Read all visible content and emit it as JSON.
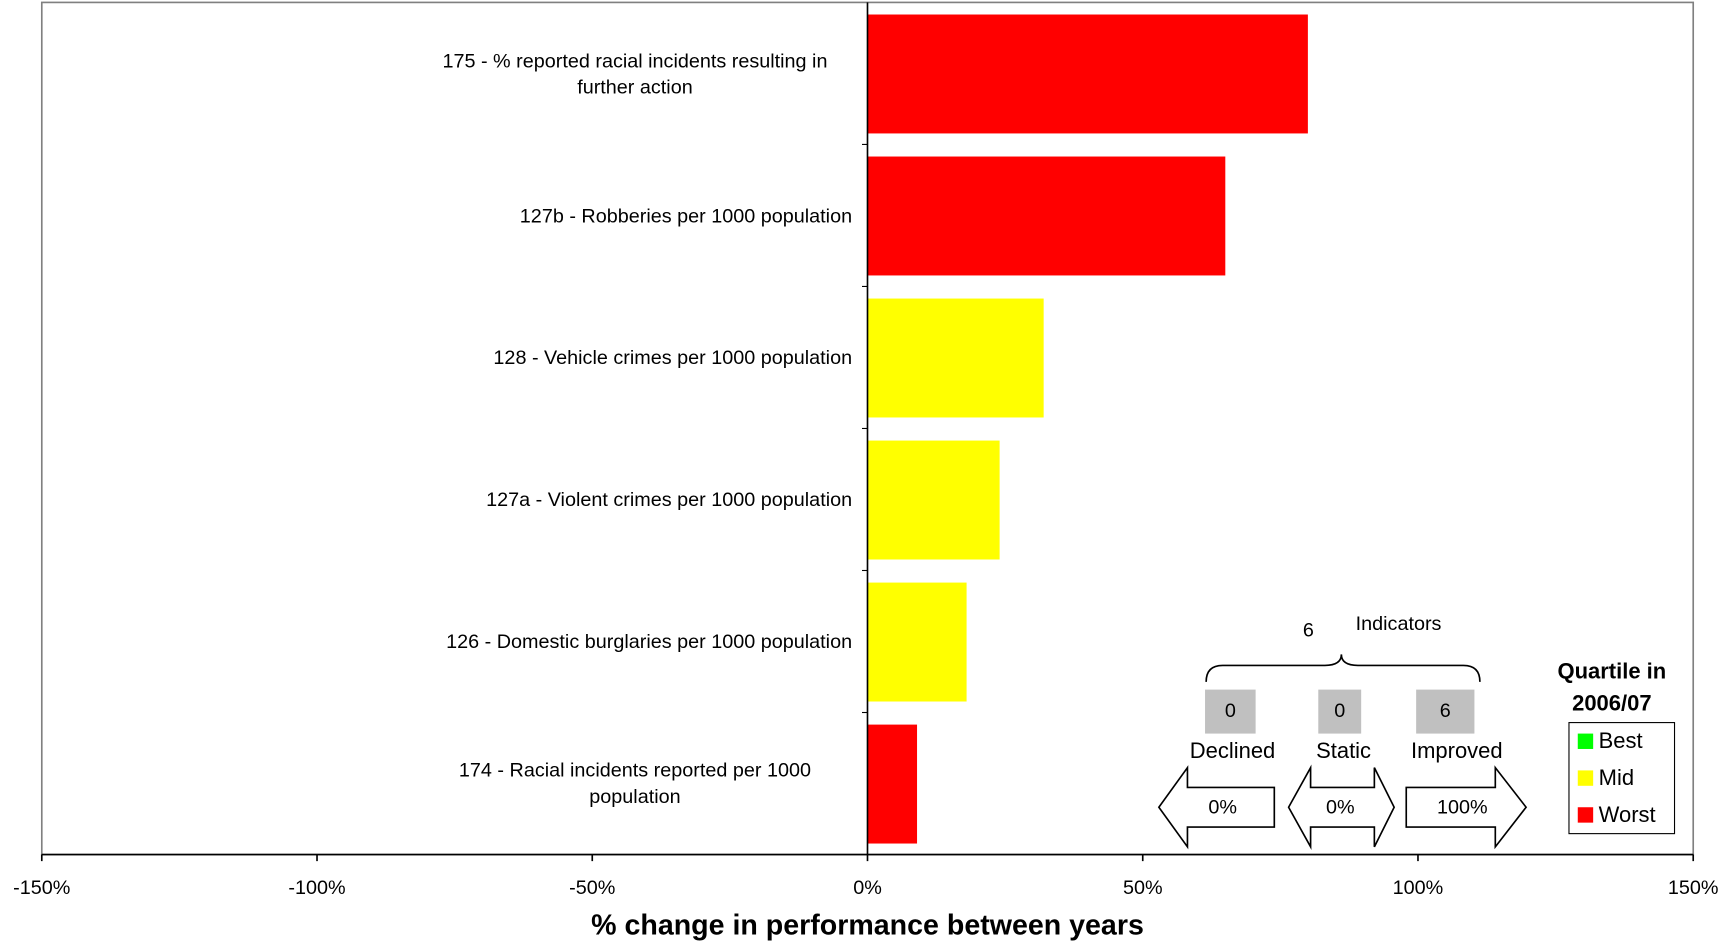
{
  "chart_data": {
    "type": "barh",
    "categories": [
      "175 - % reported racial incidents resulting in further action",
      "127b - Robberies per 1000 population",
      "128 - Vehicle crimes per 1000 population",
      "127a - Violent crimes per 1000 population",
      "126 - Domestic burglaries per 1000 population",
      "174 -  Racial incidents reported per 1000 population"
    ],
    "values": [
      80,
      65,
      32,
      24,
      18,
      9
    ],
    "colors": [
      "#ff0000",
      "#ff0000",
      "#ffff00",
      "#ffff00",
      "#ffff00",
      "#ff0000"
    ],
    "xlim": [
      -150,
      150
    ],
    "xticks": [
      {
        "value": -150,
        "label": "-150%"
      },
      {
        "value": -100,
        "label": "-100%"
      },
      {
        "value": -50,
        "label": "-50%"
      },
      {
        "value": 0,
        "label": "0%"
      },
      {
        "value": 50,
        "label": "50%"
      },
      {
        "value": 100,
        "label": "100%"
      },
      {
        "value": 150,
        "label": "150%"
      }
    ],
    "xlabel": "% change in performance between years",
    "legend": {
      "title": "Quartile in 2006/07",
      "position": "lower right",
      "items": [
        {
          "label": "Best",
          "color": "#00ff00"
        },
        {
          "label": "Mid",
          "color": "#ffff00"
        },
        {
          "label": "Worst",
          "color": "#ff0000"
        }
      ]
    },
    "summary": {
      "total": 6,
      "total_label": "Indicators",
      "groups": [
        {
          "label": "Declined",
          "count": 0,
          "percent": "0%"
        },
        {
          "label": "Static",
          "count": 0,
          "percent": "0%"
        },
        {
          "label": "Improved",
          "count": 6,
          "percent": "100%"
        }
      ]
    }
  }
}
